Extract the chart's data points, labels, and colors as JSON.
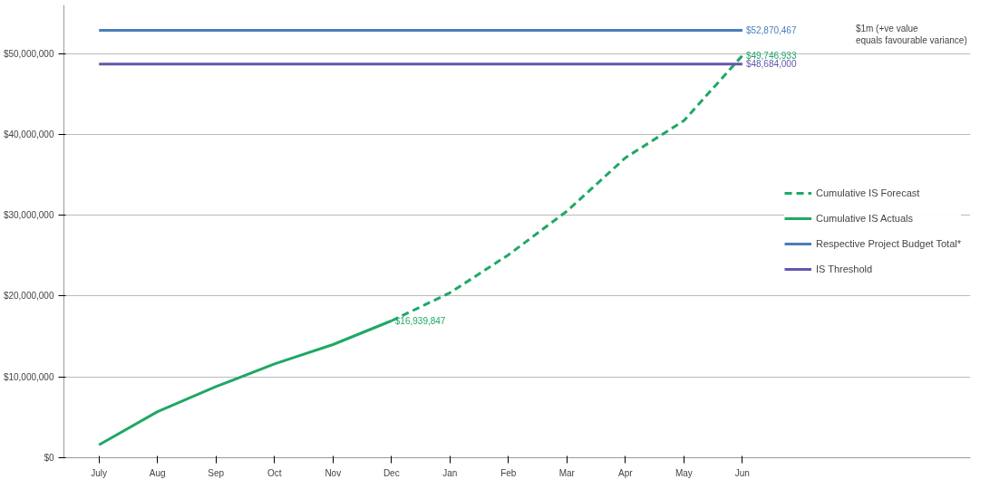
{
  "chart_data": {
    "type": "line",
    "categories": [
      "July",
      "Aug",
      "Sep",
      "Oct",
      "Nov",
      "Dec",
      "Jan",
      "Feb",
      "Mar",
      "Apr",
      "May",
      "Jun"
    ],
    "series": [
      {
        "name": "Cumulative IS Forecast",
        "color": "#1fa866",
        "line_style": "dashed",
        "values": [
          null,
          null,
          null,
          null,
          null,
          16939847,
          20400000,
          25100000,
          30500000,
          37100000,
          41700000,
          49746933
        ],
        "value_labels": [
          null,
          null,
          null,
          null,
          null,
          null,
          null,
          null,
          null,
          null,
          null,
          "$49,746,933"
        ]
      },
      {
        "name": "Cumulative IS Actuals",
        "color": "#1fa866",
        "line_style": "solid",
        "values": [
          1600000,
          5700000,
          8800000,
          11600000,
          14000000,
          16939847,
          null,
          null,
          null,
          null,
          null,
          null
        ],
        "value_labels": [
          null,
          null,
          null,
          null,
          null,
          "$16,939,847",
          null,
          null,
          null,
          null,
          null,
          null
        ]
      },
      {
        "name": "Respective Project Budget Total*",
        "color": "#4a7ebb",
        "line_style": "solid",
        "values": [
          52870467,
          52870467,
          52870467,
          52870467,
          52870467,
          52870467,
          52870467,
          52870467,
          52870467,
          52870467,
          52870467,
          52870467
        ],
        "value_labels": [
          null,
          null,
          null,
          null,
          null,
          null,
          null,
          null,
          null,
          null,
          null,
          "$52,870,467"
        ]
      },
      {
        "name": "IS Threshold",
        "color": "#6655b0",
        "line_style": "solid",
        "values": [
          48684000,
          48684000,
          48684000,
          48684000,
          48684000,
          48684000,
          48684000,
          48684000,
          48684000,
          48684000,
          48684000,
          48684000
        ],
        "value_labels": [
          null,
          null,
          null,
          null,
          null,
          null,
          null,
          null,
          null,
          null,
          null,
          "$48,684,000"
        ]
      }
    ],
    "ylim": [
      0,
      56000000
    ],
    "yticks": [
      {
        "value": 0,
        "label": "$0"
      },
      {
        "value": 10000000,
        "label": "$10,000,000"
      },
      {
        "value": 20000000,
        "label": "$20,000,000"
      },
      {
        "value": 30000000,
        "label": "$30,000,000"
      },
      {
        "value": 40000000,
        "label": "$40,000,000"
      },
      {
        "value": 50000000,
        "label": "$50,000,000"
      }
    ],
    "grid": "y",
    "legend": "right",
    "marker": "none",
    "annotations": [
      "$1m (+ve value equals favourable variance)"
    ]
  }
}
